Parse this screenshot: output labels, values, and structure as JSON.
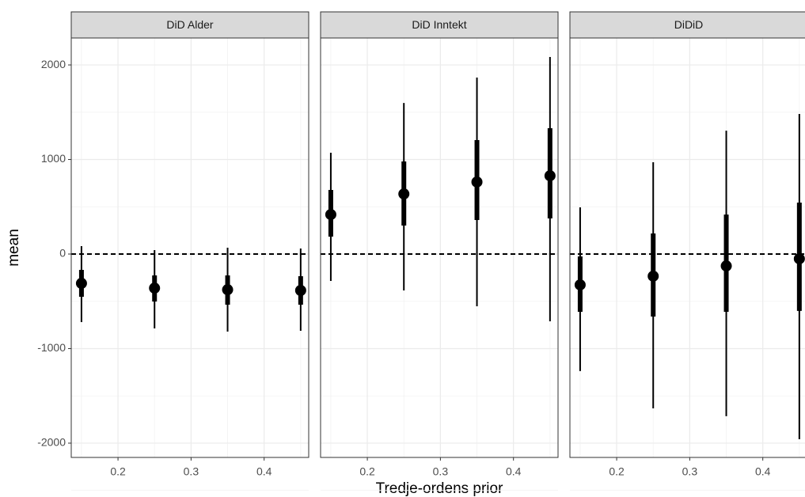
{
  "chart_data": {
    "type": "pointrange",
    "x_label": "Tredje-ordens prior",
    "y_label": "mean",
    "xlim": [
      0.136,
      0.461
    ],
    "ylim": [
      -2151,
      2285
    ],
    "xticks": [
      0.2,
      0.3,
      0.4
    ],
    "yticks": [
      -2000,
      -1000,
      0,
      1000,
      2000
    ],
    "reference_line": 0,
    "grid": true,
    "color": "#000000",
    "panels": [
      {
        "title": "DiD Alder",
        "x": [
          0.15,
          0.25,
          0.35,
          0.45
        ],
        "mean": [
          -310,
          -360,
          -377,
          -385
        ],
        "inner_low": [
          -452,
          -502,
          -536,
          -536
        ],
        "inner_high": [
          -167,
          -226,
          -226,
          -234
        ],
        "outer_low": [
          -720,
          -787,
          -820,
          -812
        ],
        "outer_high": [
          84,
          42,
          67,
          59
        ]
      },
      {
        "title": "DiD Inntekt",
        "x": [
          0.15,
          0.25,
          0.35,
          0.45
        ],
        "mean": [
          418,
          636,
          762,
          828
        ],
        "inner_low": [
          184,
          301,
          360,
          377
        ],
        "inner_high": [
          678,
          979,
          1205,
          1331
        ],
        "outer_low": [
          -285,
          -385,
          -552,
          -711
        ],
        "outer_high": [
          1071,
          1598,
          1866,
          2084
        ]
      },
      {
        "title": "DiDiD",
        "x": [
          0.15,
          0.25,
          0.35,
          0.45
        ],
        "mean": [
          -326,
          -234,
          -126,
          -50
        ],
        "inner_low": [
          -611,
          -661,
          -611,
          -602
        ],
        "inner_high": [
          -25,
          218,
          418,
          544
        ],
        "outer_low": [
          -1238,
          -1632,
          -1715,
          -1958
        ],
        "outer_high": [
          494,
          971,
          1305,
          1481
        ]
      }
    ]
  }
}
